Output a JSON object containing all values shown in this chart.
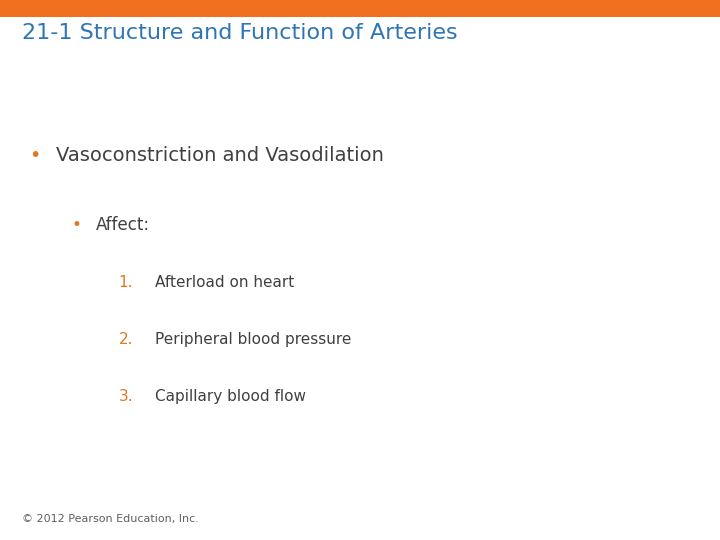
{
  "title": "21-1 Structure and Function of Arteries",
  "title_color": "#2E75B6",
  "title_fontsize": 16,
  "header_bar_color": "#F07020",
  "header_bar_height": 0.032,
  "background_color": "#FFFFFF",
  "bullet1_text": "Vasoconstriction and Vasodilation",
  "bullet1_color": "#404040",
  "bullet1_fontsize": 14,
  "bullet1_dot_color": "#E07820",
  "bullet2_text": "Affect:",
  "bullet2_color": "#404040",
  "bullet2_fontsize": 12,
  "bullet2_dot_color": "#E07820",
  "numbered_items": [
    "Afterload on heart",
    "Peripheral blood pressure",
    "Capillary blood flow"
  ],
  "numbered_color": "#404040",
  "numbered_number_color": "#E07820",
  "numbered_fontsize": 11,
  "footer_text": "© 2012 Pearson Education, Inc.",
  "footer_color": "#606060",
  "footer_fontsize": 8
}
